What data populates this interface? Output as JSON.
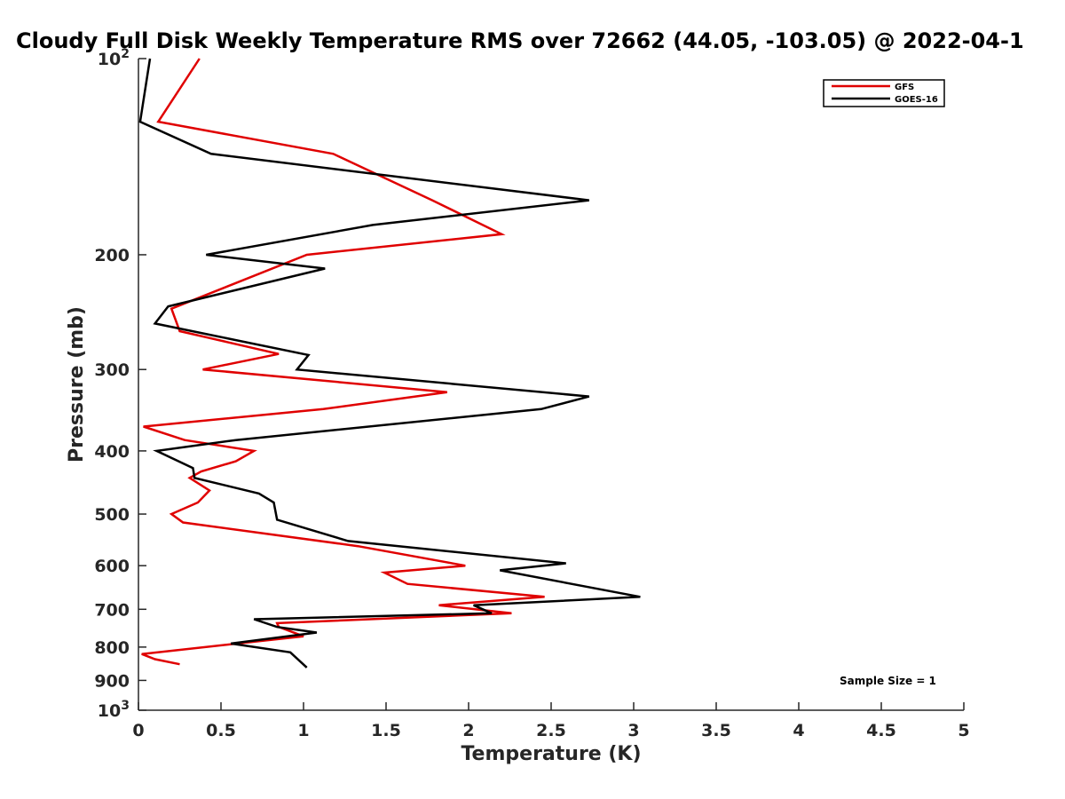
{
  "chart_data": {
    "type": "line",
    "title": "Cloudy Full Disk Weekly Temperature RMS over 72662 (44.05, -103.05) @ 2022-04-1",
    "xlabel": "Temperature (K)",
    "ylabel": "Pressure (mb)",
    "xlim": [
      0,
      5
    ],
    "ylim": [
      100,
      1000
    ],
    "yscale": "log",
    "y_reversed": true,
    "xticks": [
      0,
      0.5,
      1,
      1.5,
      2,
      2.5,
      3,
      3.5,
      4,
      4.5,
      5
    ],
    "xtick_labels": [
      "0",
      "0.5",
      "1",
      "1.5",
      "2",
      "2.5",
      "3",
      "3.5",
      "4",
      "4.5",
      "5"
    ],
    "yticks": [
      100,
      200,
      300,
      400,
      500,
      600,
      700,
      800,
      900,
      1000
    ],
    "ytick_labels": [
      {
        "base": "10",
        "exp": "2"
      },
      {
        "base": "200",
        "exp": ""
      },
      {
        "base": "300",
        "exp": ""
      },
      {
        "base": "400",
        "exp": ""
      },
      {
        "base": "500",
        "exp": ""
      },
      {
        "base": "600",
        "exp": ""
      },
      {
        "base": "700",
        "exp": ""
      },
      {
        "base": "800",
        "exp": ""
      },
      {
        "base": "900",
        "exp": ""
      },
      {
        "base": "10",
        "exp": "3"
      }
    ],
    "grid": false,
    "legend_position": "top-right",
    "annotation": "Sample Size = 1",
    "series": [
      {
        "name": "GFS",
        "color": "#e00000",
        "points": [
          [
            0.37,
            100
          ],
          [
            0.12,
            125
          ],
          [
            1.18,
            140
          ],
          [
            1.78,
            165
          ],
          [
            2.2,
            186
          ],
          [
            1.02,
            200
          ],
          [
            0.2,
            242
          ],
          [
            0.25,
            262
          ],
          [
            0.85,
            284
          ],
          [
            0.39,
            300
          ],
          [
            1.87,
            325
          ],
          [
            1.12,
            345
          ],
          [
            0.03,
            367
          ],
          [
            0.28,
            385
          ],
          [
            0.7,
            400
          ],
          [
            0.59,
            415
          ],
          [
            0.38,
            430
          ],
          [
            0.31,
            440
          ],
          [
            0.43,
            460
          ],
          [
            0.36,
            480
          ],
          [
            0.2,
            500
          ],
          [
            0.27,
            515
          ],
          [
            1.33,
            560
          ],
          [
            1.98,
            600
          ],
          [
            1.49,
            615
          ],
          [
            1.63,
            640
          ],
          [
            2.46,
            670
          ],
          [
            1.82,
            690
          ],
          [
            2.26,
            710
          ],
          [
            0.84,
            735
          ],
          [
            0.85,
            745
          ],
          [
            1.0,
            770
          ],
          [
            0.02,
            820
          ],
          [
            0.1,
            835
          ],
          [
            0.25,
            850
          ]
        ]
      },
      {
        "name": "GOES-16",
        "color": "#000000",
        "points": [
          [
            0.07,
            100
          ],
          [
            0.01,
            125
          ],
          [
            0.44,
            140
          ],
          [
            2.73,
            165
          ],
          [
            1.42,
            180
          ],
          [
            0.41,
            200
          ],
          [
            1.13,
            210
          ],
          [
            0.18,
            240
          ],
          [
            0.1,
            255
          ],
          [
            1.03,
            285
          ],
          [
            0.96,
            300
          ],
          [
            2.73,
            330
          ],
          [
            2.44,
            345
          ],
          [
            0.59,
            385
          ],
          [
            0.11,
            400
          ],
          [
            0.33,
            425
          ],
          [
            0.34,
            440
          ],
          [
            0.73,
            465
          ],
          [
            0.82,
            480
          ],
          [
            0.84,
            510
          ],
          [
            1.27,
            550
          ],
          [
            2.59,
            595
          ],
          [
            2.19,
            610
          ],
          [
            3.04,
            670
          ],
          [
            2.03,
            690
          ],
          [
            2.14,
            710
          ],
          [
            0.7,
            725
          ],
          [
            0.84,
            745
          ],
          [
            1.08,
            760
          ],
          [
            0.56,
            790
          ],
          [
            0.92,
            815
          ],
          [
            1.02,
            860
          ]
        ]
      }
    ]
  }
}
